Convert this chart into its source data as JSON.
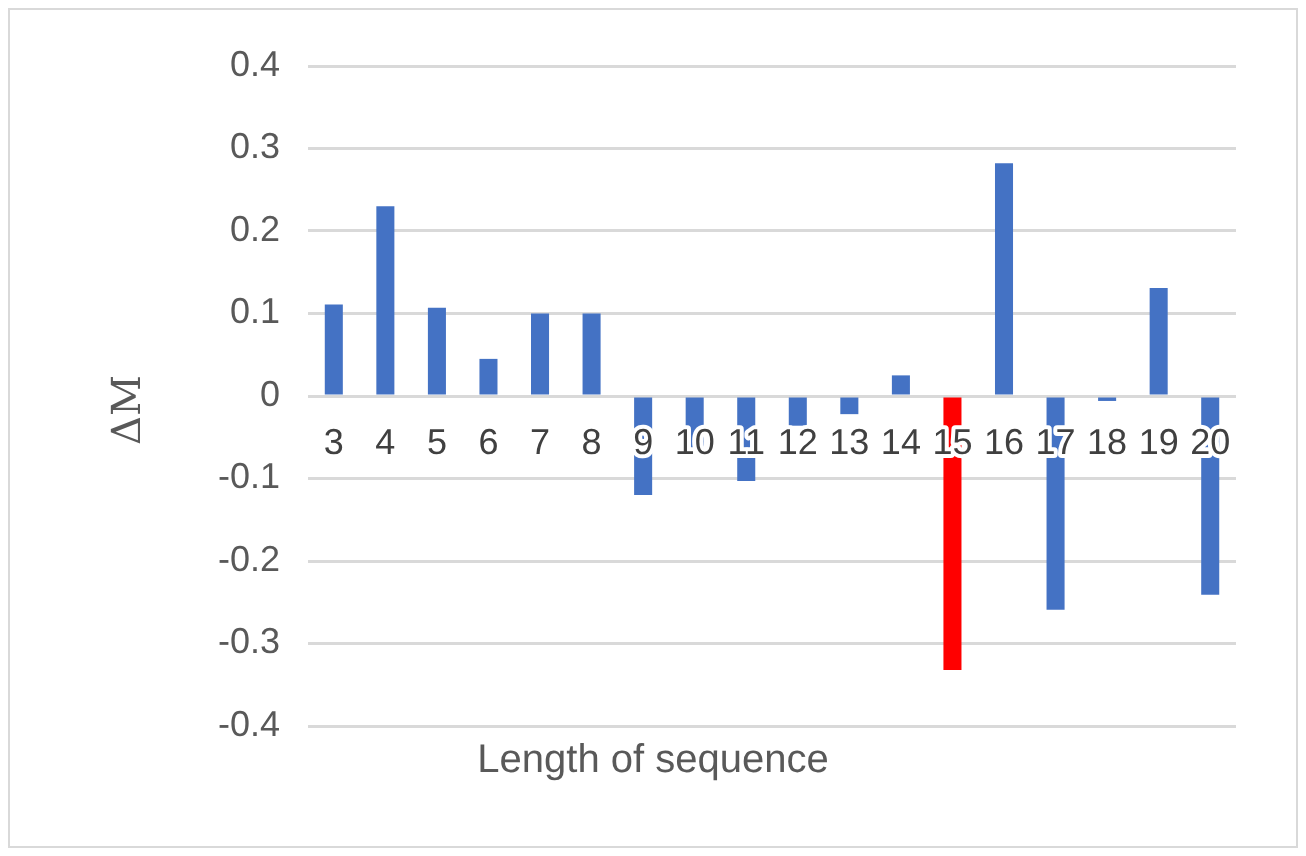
{
  "chart_data": {
    "type": "bar",
    "xlabel": "Length of sequence",
    "ylabel": "ΔM",
    "categories": [
      "3",
      "4",
      "5",
      "6",
      "7",
      "8",
      "9",
      "10",
      "11",
      "12",
      "13",
      "14",
      "15",
      "16",
      "17",
      "18",
      "19",
      "20"
    ],
    "values": [
      0.111,
      0.23,
      0.107,
      0.045,
      0.1,
      0.1,
      -0.12,
      -0.07,
      -0.103,
      -0.036,
      -0.022,
      0.025,
      -0.332,
      0.282,
      -0.259,
      -0.006,
      0.131,
      -0.241
    ],
    "colors": [
      "#4472c4",
      "#4472c4",
      "#4472c4",
      "#4472c4",
      "#4472c4",
      "#4472c4",
      "#4472c4",
      "#4472c4",
      "#4472c4",
      "#4472c4",
      "#4472c4",
      "#4472c4",
      "#ff0000",
      "#4472c4",
      "#4472c4",
      "#4472c4",
      "#4472c4",
      "#4472c4"
    ],
    "ylim": [
      -0.4,
      0.4
    ],
    "yticks": [
      -0.4,
      -0.3,
      -0.2,
      -0.1,
      0,
      0.1,
      0.2,
      0.3,
      0.4
    ],
    "grid": "y",
    "legend": false
  }
}
